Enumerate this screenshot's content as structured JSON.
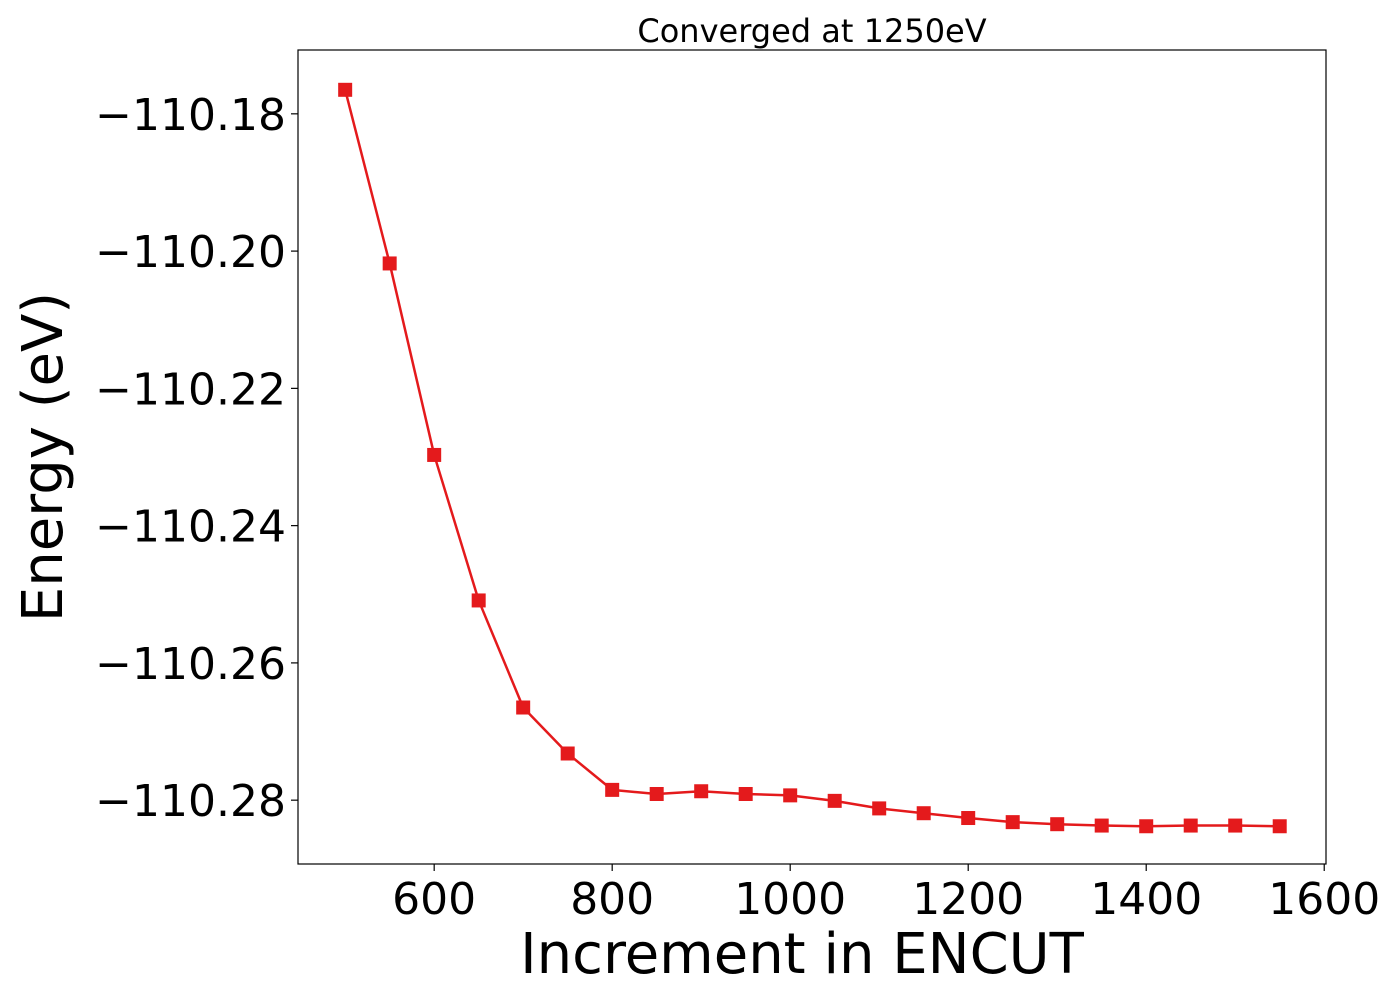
{
  "chart_data": {
    "type": "line",
    "title": "Converged at 1250eV",
    "xlabel": "Increment in ENCUT",
    "ylabel": "Energy (eV)",
    "xlim": [
      447,
      1602
    ],
    "ylim": [
      -110.2893,
      -110.1707
    ],
    "x_ticks": [
      {
        "value": 600,
        "label": "600"
      },
      {
        "value": 800,
        "label": "800"
      },
      {
        "value": 1000,
        "label": "1000"
      },
      {
        "value": 1200,
        "label": "1200"
      },
      {
        "value": 1400,
        "label": "1400"
      },
      {
        "value": 1600,
        "label": "1600"
      }
    ],
    "y_ticks": [
      {
        "value": -110.18,
        "label": "−110.18"
      },
      {
        "value": -110.2,
        "label": "−110.20"
      },
      {
        "value": -110.22,
        "label": "−110.22"
      },
      {
        "value": -110.24,
        "label": "−110.24"
      },
      {
        "value": -110.26,
        "label": "−110.26"
      },
      {
        "value": -110.28,
        "label": "−110.28"
      }
    ],
    "grid": false,
    "legend": "none",
    "marker": "square",
    "series": [
      {
        "color": "#e41a1c",
        "x": [
          500,
          550,
          600,
          650,
          700,
          750,
          800,
          850,
          900,
          950,
          1000,
          1050,
          1100,
          1150,
          1200,
          1250,
          1300,
          1350,
          1400,
          1450,
          1500,
          1550
        ],
        "y": [
          -110.1765,
          -110.2018,
          -110.2297,
          -110.2509,
          -110.2665,
          -110.2732,
          -110.2785,
          -110.2791,
          -110.2787,
          -110.2791,
          -110.2793,
          -110.2801,
          -110.2812,
          -110.2819,
          -110.2826,
          -110.2832,
          -110.2835,
          -110.2837,
          -110.2838,
          -110.2837,
          -110.2837,
          -110.2838
        ]
      }
    ]
  }
}
